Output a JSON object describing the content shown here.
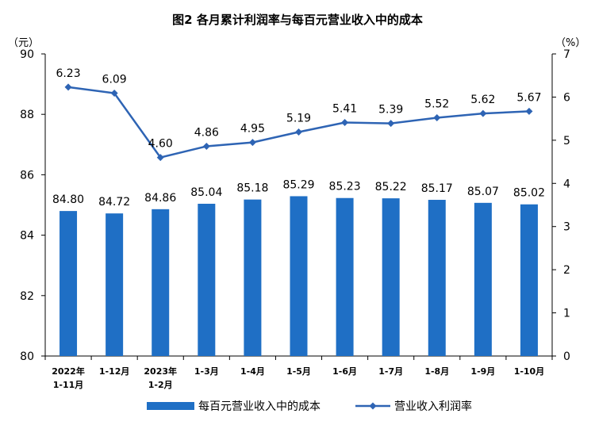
{
  "chart_data": {
    "type": "bar",
    "title": "图2  各月累计利润率与每百元营业收入中的成本",
    "left_unit": "（元）",
    "right_unit": "（%）",
    "categories": [
      [
        "2022年",
        "1-11月"
      ],
      [
        "1-12月"
      ],
      [
        "2023年",
        "1-2月"
      ],
      [
        "1-3月"
      ],
      [
        "1-4月"
      ],
      [
        "1-5月"
      ],
      [
        "1-6月"
      ],
      [
        "1-7月"
      ],
      [
        "1-8月"
      ],
      [
        "1-9月"
      ],
      [
        "1-10月"
      ]
    ],
    "left_axis": {
      "min": 80,
      "max": 90,
      "ticks": [
        "80",
        "82",
        "84",
        "86",
        "88",
        "90"
      ]
    },
    "right_axis": {
      "min": 0,
      "max": 7,
      "ticks": [
        "0",
        "1",
        "2",
        "3",
        "4",
        "5",
        "6",
        "7"
      ]
    },
    "series": [
      {
        "name": "每百元营业收入中的成本",
        "type": "bar",
        "axis": "left",
        "color": "#1f6fc5",
        "values": [
          84.8,
          84.72,
          84.86,
          85.04,
          85.18,
          85.29,
          85.23,
          85.22,
          85.17,
          85.07,
          85.02
        ],
        "labels": [
          "84.80",
          "84.72",
          "84.86",
          "85.04",
          "85.18",
          "85.29",
          "85.23",
          "85.22",
          "85.17",
          "85.07",
          "85.02"
        ]
      },
      {
        "name": "营业收入利润率",
        "type": "line",
        "axis": "right",
        "color": "#2e64b4",
        "values": [
          6.23,
          6.09,
          4.6,
          4.86,
          4.95,
          5.19,
          5.41,
          5.39,
          5.52,
          5.62,
          5.67
        ],
        "labels": [
          "6.23",
          "6.09",
          "4.60",
          "4.86",
          "4.95",
          "5.19",
          "5.41",
          "5.39",
          "5.52",
          "5.62",
          "5.67"
        ]
      }
    ],
    "legend_position": "bottom",
    "grid": false
  }
}
